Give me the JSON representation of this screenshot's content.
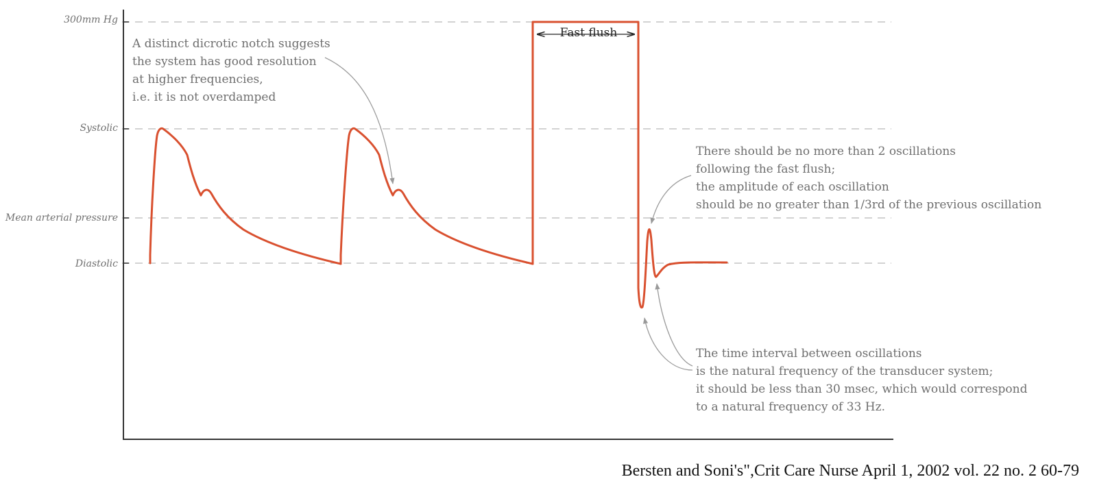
{
  "y_labels": {
    "top": "300mm Hg",
    "systolic": "Systolic",
    "map": "Mean arterial pressure",
    "diastolic": "Diastolic"
  },
  "fast_flush_label": "Fast flush",
  "notes": {
    "dicrotic": [
      "A distinct dicrotic notch suggests",
      "the system has good resolution",
      "at higher frequencies,",
      "i.e. it is not overdamped"
    ],
    "oscillations": [
      "There should be no more than 2 oscillations",
      "following the fast flush;",
      "the amplitude of each oscillation",
      "should be no greater than 1/3rd of the previous oscillation"
    ],
    "interval": [
      "The time interval between oscillations",
      "is the natural frequency of the transducer system;",
      "it should be less  than 30 msec, which would correspond",
      "to a natural frequency of 33 Hz."
    ]
  },
  "citation": "Bersten and Soni's\",Crit Care Nurse April 1, 2002 vol. 22 no. 2 60-79",
  "colors": {
    "waveform": "#d9502f",
    "gridline": "#bdbdbd",
    "axis": "#333333",
    "annotation_text": "#6e6e6e",
    "arrow": "#9a9a9a"
  }
}
